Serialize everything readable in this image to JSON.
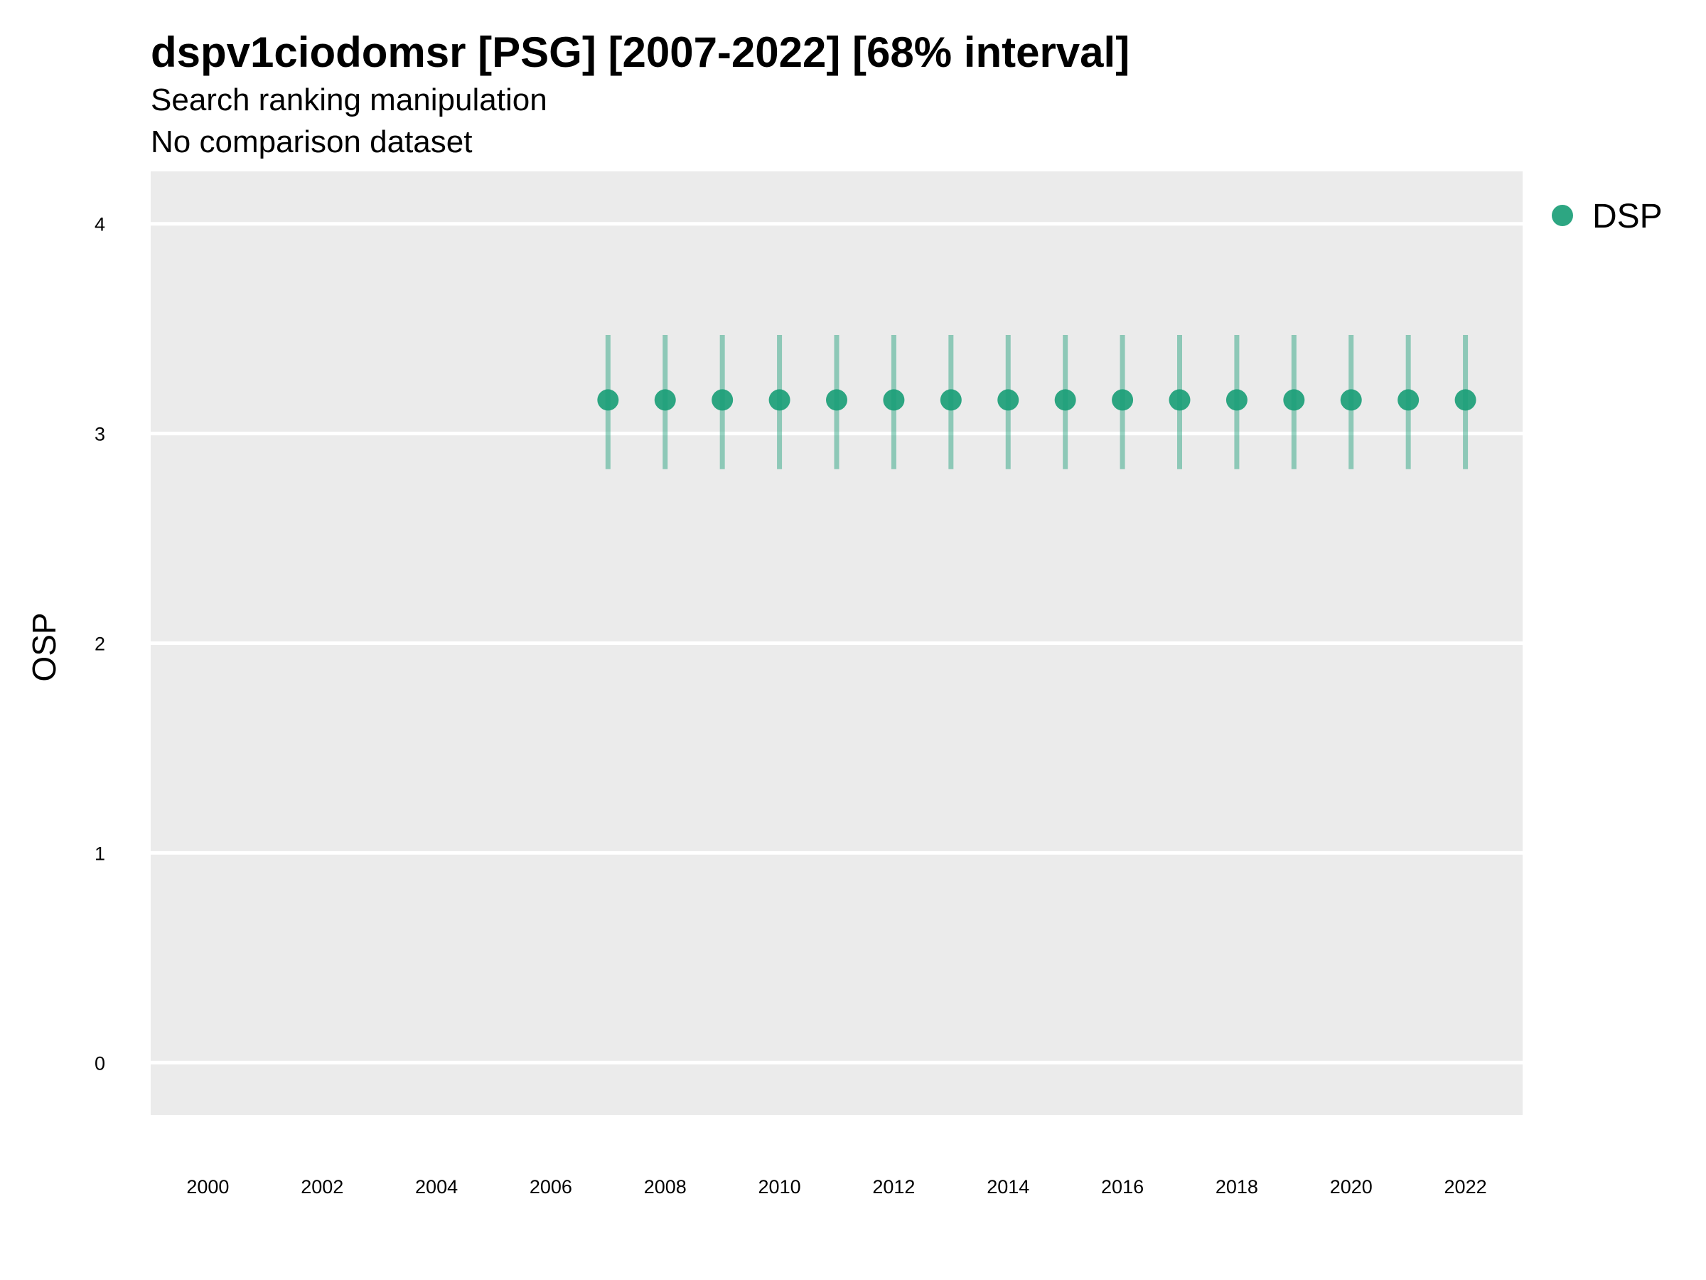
{
  "chart_data": {
    "type": "scatter",
    "title": "dspv1ciodomsr [PSG] [2007-2022] [68% interval]",
    "subtitle": "Search ranking manipulation",
    "caption_line": "No comparison dataset",
    "xlabel": "",
    "ylabel": "OSP",
    "xlim": [
      1999,
      2023
    ],
    "ylim": [
      -0.25,
      4.25
    ],
    "x_ticks": [
      2000,
      2002,
      2004,
      2006,
      2008,
      2010,
      2012,
      2014,
      2016,
      2018,
      2020,
      2022
    ],
    "y_ticks": [
      0,
      1,
      2,
      3,
      4
    ],
    "grid": true,
    "legend_position": "top-right",
    "series": [
      {
        "name": "DSP",
        "color": "#1b9e77",
        "points": [
          {
            "x": 2007,
            "y": 3.16,
            "lower": 2.83,
            "upper": 3.47
          },
          {
            "x": 2008,
            "y": 3.16,
            "lower": 2.83,
            "upper": 3.47
          },
          {
            "x": 2009,
            "y": 3.16,
            "lower": 2.83,
            "upper": 3.47
          },
          {
            "x": 2010,
            "y": 3.16,
            "lower": 2.83,
            "upper": 3.47
          },
          {
            "x": 2011,
            "y": 3.16,
            "lower": 2.83,
            "upper": 3.47
          },
          {
            "x": 2012,
            "y": 3.16,
            "lower": 2.83,
            "upper": 3.47
          },
          {
            "x": 2013,
            "y": 3.16,
            "lower": 2.83,
            "upper": 3.47
          },
          {
            "x": 2014,
            "y": 3.16,
            "lower": 2.83,
            "upper": 3.47
          },
          {
            "x": 2015,
            "y": 3.16,
            "lower": 2.83,
            "upper": 3.47
          },
          {
            "x": 2016,
            "y": 3.16,
            "lower": 2.83,
            "upper": 3.47
          },
          {
            "x": 2017,
            "y": 3.16,
            "lower": 2.83,
            "upper": 3.47
          },
          {
            "x": 2018,
            "y": 3.16,
            "lower": 2.83,
            "upper": 3.47
          },
          {
            "x": 2019,
            "y": 3.16,
            "lower": 2.83,
            "upper": 3.47
          },
          {
            "x": 2020,
            "y": 3.16,
            "lower": 2.83,
            "upper": 3.47
          },
          {
            "x": 2021,
            "y": 3.16,
            "lower": 2.83,
            "upper": 3.47
          },
          {
            "x": 2022,
            "y": 3.16,
            "lower": 2.83,
            "upper": 3.47
          }
        ]
      }
    ],
    "colors": {
      "panel_background": "#ebebeb",
      "grid": "#ffffff"
    }
  }
}
